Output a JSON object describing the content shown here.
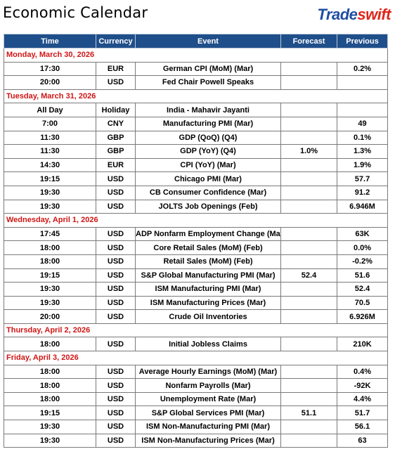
{
  "header": {
    "title": "Economic Calendar"
  },
  "brand": {
    "left": "Trade",
    "right": "swift",
    "left_color": "#1f4ea3",
    "right_color": "#e0261a"
  },
  "colors": {
    "header_bg": "#1f4f8a",
    "date_text": "#d01515"
  },
  "table": {
    "columns": [
      "Time",
      "Currency",
      "Event",
      "Forecast",
      "Previous"
    ],
    "days": [
      {
        "date": "Monday, March 30, 2026",
        "rows": [
          {
            "time": "17:30",
            "currency": "EUR",
            "event": "German CPI (MoM) (Mar)",
            "forecast": "",
            "previous": "0.2%"
          },
          {
            "time": "20:00",
            "currency": "USD",
            "event": "Fed Chair Powell Speaks",
            "forecast": "",
            "previous": ""
          }
        ]
      },
      {
        "date": "Tuesday, March 31, 2026",
        "rows": [
          {
            "time": "All Day",
            "currency": "Holiday",
            "event": "India - Mahavir Jayanti",
            "forecast": "",
            "previous": ""
          },
          {
            "time": "7:00",
            "currency": "CNY",
            "event": "Manufacturing PMI (Mar)",
            "forecast": "",
            "previous": "49"
          },
          {
            "time": "11:30",
            "currency": "GBP",
            "event": "GDP (QoQ) (Q4)",
            "forecast": "",
            "previous": "0.1%"
          },
          {
            "time": "11:30",
            "currency": "GBP",
            "event": "GDP (YoY) (Q4)",
            "forecast": "1.0%",
            "previous": "1.3%"
          },
          {
            "time": "14:30",
            "currency": "EUR",
            "event": "CPI (YoY) (Mar)",
            "forecast": "",
            "previous": "1.9%"
          },
          {
            "time": "19:15",
            "currency": "USD",
            "event": "Chicago PMI (Mar)",
            "forecast": "",
            "previous": "57.7"
          },
          {
            "time": "19:30",
            "currency": "USD",
            "event": "CB Consumer Confidence (Mar)",
            "forecast": "",
            "previous": "91.2"
          },
          {
            "time": "19:30",
            "currency": "USD",
            "event": "JOLTS Job Openings (Feb)",
            "forecast": "",
            "previous": "6.946M"
          }
        ]
      },
      {
        "date": "Wednesday, April 1, 2026",
        "rows": [
          {
            "time": "17:45",
            "currency": "USD",
            "event": "ADP Nonfarm Employment Change (Mar)",
            "forecast": "",
            "previous": "63K"
          },
          {
            "time": "18:00",
            "currency": "USD",
            "event": "Core Retail Sales (MoM) (Feb)",
            "forecast": "",
            "previous": "0.0%"
          },
          {
            "time": "18:00",
            "currency": "USD",
            "event": "Retail Sales (MoM) (Feb)",
            "forecast": "",
            "previous": "-0.2%"
          },
          {
            "time": "19:15",
            "currency": "USD",
            "event": "S&P Global Manufacturing PMI (Mar)",
            "forecast": "52.4",
            "previous": "51.6"
          },
          {
            "time": "19:30",
            "currency": "USD",
            "event": "ISM Manufacturing PMI (Mar)",
            "forecast": "",
            "previous": "52.4"
          },
          {
            "time": "19:30",
            "currency": "USD",
            "event": "ISM Manufacturing Prices (Mar)",
            "forecast": "",
            "previous": "70.5"
          },
          {
            "time": "20:00",
            "currency": "USD",
            "event": "Crude Oil Inventories",
            "forecast": "",
            "previous": "6.926M"
          }
        ]
      },
      {
        "date": "Thursday, April 2, 2026",
        "rows": [
          {
            "time": "18:00",
            "currency": "USD",
            "event": "Initial Jobless Claims",
            "forecast": "",
            "previous": "210K"
          }
        ]
      },
      {
        "date": "Friday, April 3, 2026",
        "rows": [
          {
            "time": "18:00",
            "currency": "USD",
            "event": "Average Hourly Earnings (MoM) (Mar)",
            "forecast": "",
            "previous": "0.4%"
          },
          {
            "time": "18:00",
            "currency": "USD",
            "event": "Nonfarm Payrolls (Mar)",
            "forecast": "",
            "previous": "-92K"
          },
          {
            "time": "18:00",
            "currency": "USD",
            "event": "Unemployment Rate (Mar)",
            "forecast": "",
            "previous": "4.4%"
          },
          {
            "time": "19:15",
            "currency": "USD",
            "event": "S&P Global Services PMI (Mar)",
            "forecast": "51.1",
            "previous": "51.7"
          },
          {
            "time": "19:30",
            "currency": "USD",
            "event": "ISM Non-Manufacturing PMI (Mar)",
            "forecast": "",
            "previous": "56.1"
          },
          {
            "time": "19:30",
            "currency": "USD",
            "event": "ISM Non-Manufacturing Prices (Mar)",
            "forecast": "",
            "previous": "63"
          }
        ]
      }
    ]
  }
}
